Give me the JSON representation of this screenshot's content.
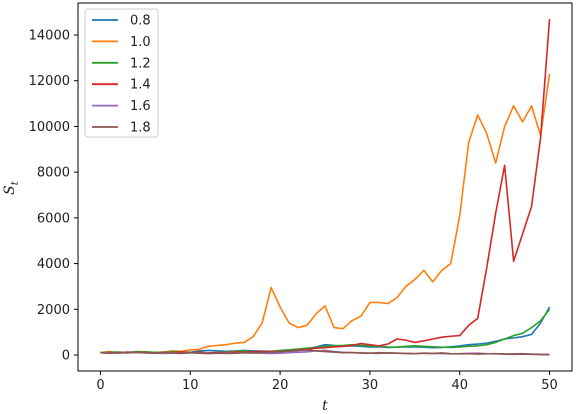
{
  "chart_data": {
    "type": "line",
    "xlabel": "t",
    "ylabel": "S_t",
    "xlim": [
      -2.5,
      52.5
    ],
    "ylim": [
      -700,
      15400
    ],
    "xticks": [
      0,
      10,
      20,
      30,
      40,
      50
    ],
    "yticks": [
      0,
      2000,
      4000,
      6000,
      8000,
      10000,
      12000,
      14000
    ],
    "legend_position": "top-left",
    "grid": false,
    "series": [
      {
        "name": "0.8",
        "color": "#1f77b4",
        "values": [
          100,
          110,
          100,
          120,
          130,
          120,
          110,
          130,
          140,
          150,
          120,
          180,
          200,
          180,
          160,
          170,
          200,
          180,
          170,
          160,
          150,
          160,
          200,
          280,
          350,
          450,
          420,
          380,
          400,
          380,
          350,
          360,
          330,
          340,
          360,
          350,
          340,
          320,
          330,
          360,
          400,
          450,
          480,
          520,
          600,
          700,
          750,
          800,
          900,
          1400,
          2100
        ]
      },
      {
        "name": "1.0",
        "color": "#ff7f0e",
        "values": [
          100,
          150,
          110,
          90,
          120,
          140,
          100,
          130,
          180,
          160,
          220,
          250,
          380,
          420,
          450,
          520,
          550,
          800,
          1400,
          2950,
          2100,
          1400,
          1200,
          1300,
          1800,
          2150,
          1200,
          1150,
          1500,
          1700,
          2300,
          2300,
          2250,
          2500,
          3000,
          3300,
          3700,
          3200,
          3700,
          4000,
          6100,
          9300,
          10500,
          9700,
          8400,
          10000,
          10900,
          10200,
          10900,
          9600,
          12300
        ]
      },
      {
        "name": "1.2",
        "color": "#2ca02c",
        "values": [
          100,
          120,
          130,
          110,
          150,
          140,
          120,
          100,
          150,
          130,
          110,
          120,
          90,
          100,
          130,
          150,
          180,
          120,
          140,
          160,
          200,
          230,
          260,
          300,
          320,
          380,
          400,
          420,
          450,
          420,
          400,
          380,
          350,
          340,
          380,
          400,
          380,
          360,
          340,
          330,
          350,
          380,
          400,
          450,
          550,
          700,
          850,
          950,
          1200,
          1500,
          2000
        ]
      },
      {
        "name": "1.4",
        "color": "#d62728",
        "values": [
          100,
          110,
          90,
          130,
          100,
          120,
          80,
          110,
          100,
          130,
          100,
          120,
          90,
          110,
          100,
          130,
          120,
          140,
          150,
          160,
          150,
          170,
          220,
          250,
          300,
          320,
          350,
          380,
          420,
          500,
          450,
          400,
          480,
          700,
          650,
          550,
          620,
          700,
          780,
          820,
          850,
          1300,
          1600,
          3800,
          6200,
          8300,
          4100,
          5300,
          6500,
          9500,
          14700
        ]
      },
      {
        "name": "1.6",
        "color": "#9467bd",
        "values": [
          100,
          90,
          80,
          110,
          100,
          90,
          80,
          70,
          90,
          80,
          100,
          90,
          80,
          70,
          90,
          80,
          100,
          90,
          80,
          70,
          80,
          100,
          120,
          140,
          180,
          200,
          150,
          120,
          100,
          90,
          80,
          70,
          90,
          80,
          70,
          60,
          80,
          70,
          60,
          50,
          60,
          70,
          80,
          60,
          50,
          40,
          50,
          60,
          40,
          30,
          20
        ]
      },
      {
        "name": "1.8",
        "color": "#8c564b",
        "values": [
          100,
          80,
          110,
          90,
          120,
          100,
          80,
          110,
          90,
          70,
          100,
          80,
          60,
          90,
          70,
          80,
          100,
          90,
          110,
          130,
          150,
          180,
          200,
          220,
          180,
          150,
          130,
          100,
          110,
          90,
          80,
          100,
          90,
          80,
          70,
          60,
          80,
          70,
          90,
          60,
          50,
          60,
          40,
          50,
          60,
          40,
          30,
          40,
          30,
          20,
          15
        ]
      }
    ]
  }
}
